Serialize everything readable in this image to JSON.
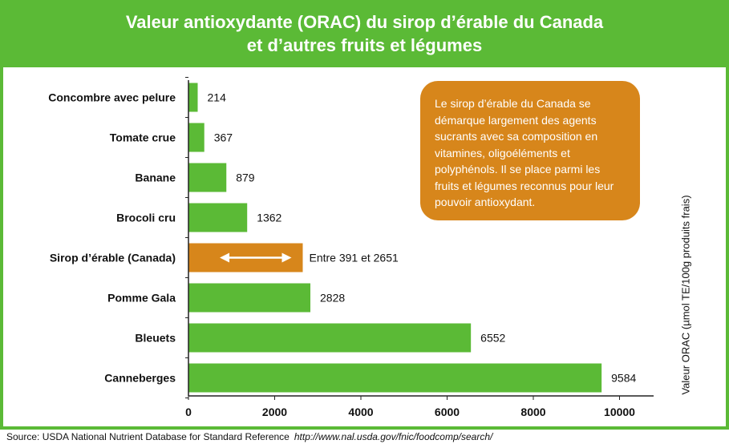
{
  "title_line1": "Valeur antioxydante (ORAC) du sirop d’érable du Canada",
  "title_line2": "et d’autres fruits et légumes",
  "callout_text": "Le sirop d’érable du Canada se démarque largement des agents sucrants avec sa composition en vitamines, oligoéléments et polyphénols. Il se place parmi les fruits et légumes reconnus pour leur pouvoir antioxydant.",
  "y_axis_label": "Valeur ORAC (µmol TE/100g produits frais)",
  "source_text": "Source: USDA National Nutrient Database for Standard Reference",
  "source_url": "http://www.nal.usda.gov/fnic/foodcomp/search/",
  "colors": {
    "green": "#5bba36",
    "orange": "#d7861b"
  },
  "chart_data": {
    "type": "bar",
    "orientation": "horizontal",
    "title": "Valeur antioxydante (ORAC) du sirop d’érable du Canada et d’autres fruits et légumes",
    "ylabel": "Valeur ORAC (µmol TE/100g produits frais)",
    "xlim": [
      0,
      11000
    ],
    "xticks": [
      0,
      2000,
      4000,
      6000,
      8000,
      10000
    ],
    "grid": false,
    "bars": [
      {
        "category": "Concombre avec pelure",
        "value": 214,
        "label": "214",
        "color": "#5bba36"
      },
      {
        "category": "Tomate crue",
        "value": 367,
        "label": "367",
        "color": "#5bba36"
      },
      {
        "category": "Banane",
        "value": 879,
        "label": "879",
        "color": "#5bba36"
      },
      {
        "category": "Brocoli cru",
        "value": 1362,
        "label": "1362",
        "color": "#5bba36"
      },
      {
        "category": "Sirop d’érable (Canada)",
        "range": [
          391,
          2651
        ],
        "label": "Entre 391 et 2651",
        "color": "#d7861b"
      },
      {
        "category": "Pomme Gala",
        "value": 2828,
        "label": "2828",
        "color": "#5bba36"
      },
      {
        "category": "Bleuets",
        "value": 6552,
        "label": "6552",
        "color": "#5bba36"
      },
      {
        "category": "Canneberges",
        "value": 9584,
        "label": "9584",
        "color": "#5bba36"
      }
    ]
  }
}
